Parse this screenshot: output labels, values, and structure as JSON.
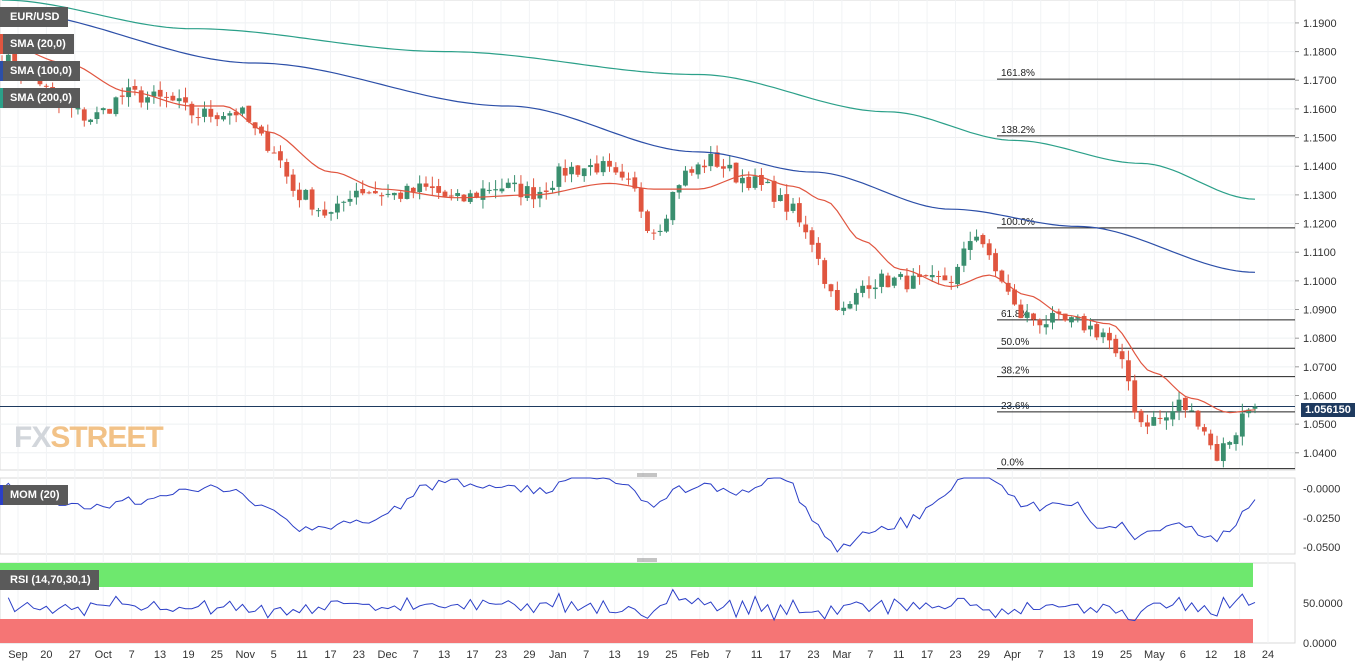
{
  "chart_data": {
    "type": "candlestick",
    "symbol": "EUR/USD",
    "last_price": "1.056150",
    "colors": {
      "up": "#3a8f6f",
      "down": "#e0553f",
      "sma20": "#e0553f",
      "sma100": "#2c4fa8",
      "sma200": "#2ba089",
      "mom": "#2b3fc7",
      "rsi": "#2b3fc7",
      "rsi_overbought": "#6ee86e",
      "rsi_oversold": "#f57575"
    },
    "indicators": {
      "sma20": {
        "label": "SMA (20,0)",
        "color": "#e0553f"
      },
      "sma100": {
        "label": "SMA (100,0)",
        "color": "#2c4fa8"
      },
      "sma200": {
        "label": "SMA (200,0)",
        "color": "#2ba089"
      },
      "mom": {
        "label": "MOM (20)",
        "ticks": [
          "-0.0000",
          "-0.0250",
          "-0.0500"
        ],
        "range": [
          -0.056,
          0.009
        ]
      },
      "rsi": {
        "label": "RSI (14,70,30,1)",
        "ticks": [
          "50.0000",
          "0.0000"
        ],
        "range": [
          0,
          100
        ]
      }
    },
    "price_axis": {
      "ticks": [
        "1.1900",
        "1.1800",
        "1.1700",
        "1.1600",
        "1.1500",
        "1.1400",
        "1.1300",
        "1.1200",
        "1.1100",
        "1.1000",
        "1.0900",
        "1.0800",
        "1.0700",
        "1.0600",
        "1.0500",
        "1.0400"
      ],
      "min": 1.034,
      "max": 1.198
    },
    "x_axis": {
      "ticks": [
        "Sep",
        "20",
        "27",
        "Oct",
        "7",
        "13",
        "19",
        "25",
        "Nov",
        "5",
        "11",
        "17",
        "23",
        "Dec",
        "7",
        "13",
        "17",
        "23",
        "29",
        "Jan",
        "7",
        "13",
        "19",
        "25",
        "Feb",
        "7",
        "11",
        "17",
        "23",
        "Mar",
        "7",
        "11",
        "17",
        "23",
        "29",
        "Apr",
        "7",
        "13",
        "19",
        "25",
        "May",
        "6",
        "12",
        "18",
        "24"
      ]
    },
    "fibonacci": [
      {
        "label": "161.8%",
        "value": 1.1704
      },
      {
        "label": "138.2%",
        "value": 1.1506
      },
      {
        "label": "100.0%",
        "value": 1.1185
      },
      {
        "label": "61.8%",
        "value": 1.0864
      },
      {
        "label": "50.0%",
        "value": 1.0765
      },
      {
        "label": "38.2%",
        "value": 1.0666
      },
      {
        "label": "23.6%",
        "value": 1.0543
      },
      {
        "label": "0.0%",
        "value": 1.0345
      }
    ],
    "close_keys": [
      [
        0,
        1.177
      ],
      [
        4,
        1.173
      ],
      [
        10,
        1.16
      ],
      [
        14,
        1.157
      ],
      [
        20,
        1.165
      ],
      [
        26,
        1.163
      ],
      [
        31,
        1.158
      ],
      [
        37,
        1.159
      ],
      [
        42,
        1.148
      ],
      [
        47,
        1.13
      ],
      [
        52,
        1.123
      ],
      [
        56,
        1.132
      ],
      [
        62,
        1.13
      ],
      [
        67,
        1.132
      ],
      [
        72,
        1.128
      ],
      [
        78,
        1.133
      ],
      [
        84,
        1.131
      ],
      [
        90,
        1.139
      ],
      [
        94,
        1.14
      ],
      [
        99,
        1.133
      ],
      [
        103,
        1.118
      ],
      [
        108,
        1.137
      ],
      [
        112,
        1.142
      ],
      [
        117,
        1.136
      ],
      [
        121,
        1.132
      ],
      [
        124,
        1.126
      ],
      [
        128,
        1.114
      ],
      [
        131,
        1.096
      ],
      [
        133,
        1.089
      ],
      [
        137,
        1.1
      ],
      [
        142,
        1.1
      ],
      [
        146,
        1.099
      ],
      [
        150,
        1.101
      ],
      [
        154,
        1.117
      ],
      [
        157,
        1.103
      ],
      [
        161,
        1.088
      ],
      [
        165,
        1.086
      ],
      [
        170,
        1.085
      ],
      [
        174,
        1.082
      ],
      [
        177,
        1.07
      ],
      [
        180,
        1.051
      ],
      [
        184,
        1.052
      ],
      [
        186,
        1.057
      ],
      [
        189,
        1.052
      ],
      [
        192,
        1.039
      ],
      [
        194,
        1.045
      ],
      [
        197,
        1.0555
      ],
      [
        198,
        1.0562
      ]
    ],
    "sma20_keys": [
      [
        0,
        1.183
      ],
      [
        10,
        1.176
      ],
      [
        20,
        1.166
      ],
      [
        30,
        1.161
      ],
      [
        35,
        1.161
      ],
      [
        42,
        1.152
      ],
      [
        52,
        1.138
      ],
      [
        60,
        1.132
      ],
      [
        72,
        1.129
      ],
      [
        84,
        1.13
      ],
      [
        96,
        1.134
      ],
      [
        103,
        1.132
      ],
      [
        110,
        1.132
      ],
      [
        118,
        1.137
      ],
      [
        125,
        1.133
      ],
      [
        130,
        1.128
      ],
      [
        136,
        1.114
      ],
      [
        142,
        1.104
      ],
      [
        150,
        1.098
      ],
      [
        156,
        1.102
      ],
      [
        162,
        1.095
      ],
      [
        168,
        1.088
      ],
      [
        175,
        1.085
      ],
      [
        182,
        1.068
      ],
      [
        188,
        1.059
      ],
      [
        194,
        1.054
      ],
      [
        198,
        1.055
      ]
    ],
    "sma100_keys": [
      [
        0,
        1.194
      ],
      [
        40,
        1.176
      ],
      [
        80,
        1.161
      ],
      [
        110,
        1.145
      ],
      [
        128,
        1.138
      ],
      [
        150,
        1.125
      ],
      [
        170,
        1.119
      ],
      [
        198,
        1.103
      ]
    ],
    "sma200_keys": [
      [
        0,
        1.198
      ],
      [
        30,
        1.188
      ],
      [
        70,
        1.18
      ],
      [
        110,
        1.172
      ],
      [
        140,
        1.159
      ],
      [
        160,
        1.149
      ],
      [
        180,
        1.141
      ],
      [
        198,
        1.1285
      ]
    ]
  }
}
